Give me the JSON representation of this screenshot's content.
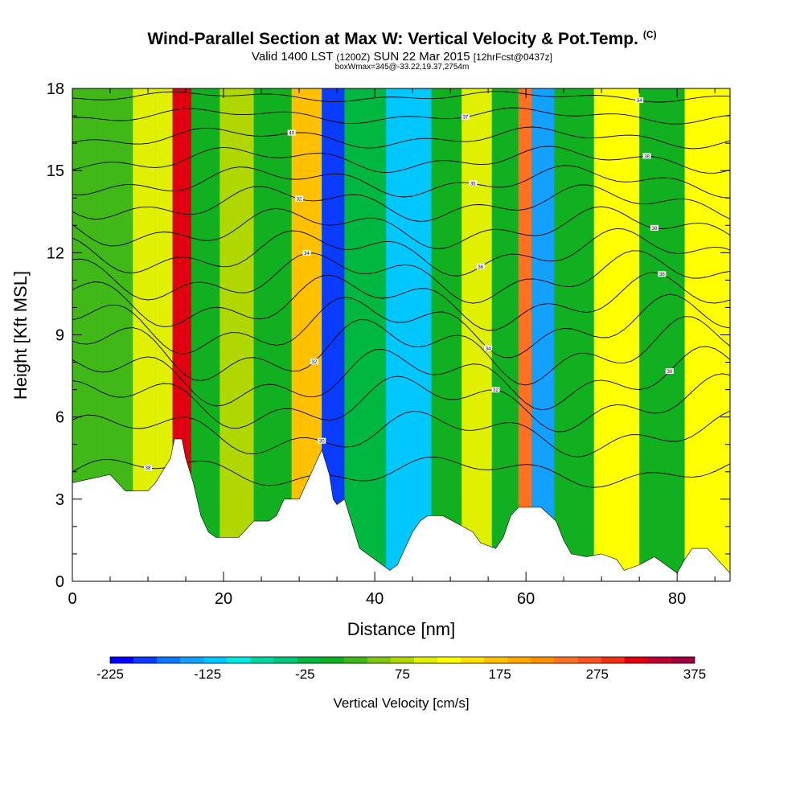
{
  "chart_data": {
    "type": "heatmap",
    "title": "Wind-Parallel Section at Max W: Vertical Velocity & Pot.Temp.",
    "copyright": "(C)",
    "subtitle_main": "Valid 1400 LST",
    "subtitle_utc": "(1200Z)",
    "subtitle_date": "SUN 22 Mar 2015",
    "subtitle_fcst": "[12hrFcst@0437z]",
    "subtitle2": "boxWmax=345@-33.22,19.37,2754m",
    "xlabel": "Distance [nm]",
    "ylabel": "Height [Kft MSL]",
    "xlim": [
      0,
      87
    ],
    "ylim": [
      0,
      18
    ],
    "xticks": [
      "0",
      "20",
      "40",
      "60",
      "80"
    ],
    "yticks": [
      "0",
      "3",
      "6",
      "9",
      "12",
      "15",
      "18"
    ],
    "colorbar": {
      "title": "Vertical Velocity [cm/s]",
      "min": -225,
      "max": 375,
      "step": 25,
      "tick_labels": [
        "-225",
        "-125",
        "-25",
        "75",
        "175",
        "275",
        "375"
      ],
      "colors": [
        "#0000ff",
        "#0a3cff",
        "#0a78ff",
        "#14a0ff",
        "#00c8ff",
        "#00e8e0",
        "#00d8a0",
        "#00c878",
        "#00b840",
        "#10b020",
        "#40b818",
        "#80c810",
        "#b0d800",
        "#e0f000",
        "#ffff00",
        "#ffe000",
        "#ffc000",
        "#ffa800",
        "#ff9000",
        "#ff7020",
        "#ff5020",
        "#f03010",
        "#e00010",
        "#c00030",
        "#a00040"
      ]
    },
    "w_columns": [
      {
        "x": 2,
        "w": 30
      },
      {
        "x": 6,
        "w": 40
      },
      {
        "x": 10,
        "w": 110
      },
      {
        "x": 12,
        "w": 115
      },
      {
        "x": 14.5,
        "w": 330
      },
      {
        "x": 17,
        "w": 10
      },
      {
        "x": 22,
        "w": 80
      },
      {
        "x": 26,
        "w": 0
      },
      {
        "x": 32,
        "w": 180
      },
      {
        "x": 34,
        "w": -190
      },
      {
        "x": 38,
        "w": -20
      },
      {
        "x": 45,
        "w": -110
      },
      {
        "x": 50,
        "w": 10
      },
      {
        "x": 53,
        "w": 120
      },
      {
        "x": 58,
        "w": 20
      },
      {
        "x": 60,
        "w": 250
      },
      {
        "x": 61.5,
        "w": -150
      },
      {
        "x": 66,
        "w": 20
      },
      {
        "x": 72,
        "w": 130
      },
      {
        "x": 78,
        "w": 10
      },
      {
        "x": 84,
        "w": 140
      }
    ],
    "terrain": [
      [
        0,
        3.6
      ],
      [
        5,
        3.9
      ],
      [
        6,
        3.6
      ],
      [
        7,
        3.3
      ],
      [
        10,
        3.3
      ],
      [
        11,
        3.6
      ],
      [
        13,
        4.5
      ],
      [
        13.5,
        5.2
      ],
      [
        14.5,
        5.2
      ],
      [
        15,
        4.5
      ],
      [
        16,
        3.6
      ],
      [
        16.5,
        3.0
      ],
      [
        17,
        2.4
      ],
      [
        18,
        1.8
      ],
      [
        19,
        1.6
      ],
      [
        22,
        1.6
      ],
      [
        24,
        2.2
      ],
      [
        26,
        2.2
      ],
      [
        27,
        2.4
      ],
      [
        28,
        3.0
      ],
      [
        30,
        3.0
      ],
      [
        31,
        3.6
      ],
      [
        32,
        4.2
      ],
      [
        33,
        4.8
      ],
      [
        34,
        3.9
      ],
      [
        34.5,
        3.0
      ],
      [
        35,
        2.8
      ],
      [
        36,
        3.0
      ],
      [
        37,
        2.1
      ],
      [
        38,
        1.2
      ],
      [
        39,
        1.0
      ],
      [
        41,
        0.6
      ],
      [
        42,
        0.4
      ],
      [
        43,
        0.6
      ],
      [
        44,
        1.2
      ],
      [
        45,
        1.8
      ],
      [
        46,
        2.2
      ],
      [
        47,
        2.4
      ],
      [
        49,
        2.4
      ],
      [
        51,
        2.1
      ],
      [
        53,
        1.8
      ],
      [
        54,
        1.4
      ],
      [
        56,
        1.2
      ],
      [
        57,
        1.6
      ],
      [
        58,
        2.4
      ],
      [
        59,
        2.7
      ],
      [
        62,
        2.7
      ],
      [
        64,
        2.2
      ],
      [
        65,
        1.5
      ],
      [
        66,
        1.0
      ],
      [
        68,
        0.9
      ],
      [
        70,
        1.0
      ],
      [
        72,
        0.8
      ],
      [
        73,
        0.4
      ],
      [
        75,
        0.6
      ],
      [
        77,
        0.9
      ],
      [
        79,
        0.5
      ],
      [
        80,
        0.3
      ],
      [
        81,
        0.8
      ],
      [
        82,
        1.2
      ],
      [
        83,
        1.2
      ],
      [
        84,
        1.2
      ],
      [
        86,
        0.6
      ],
      [
        87,
        0.3
      ]
    ],
    "theta_contours": [
      {
        "base": 4.0,
        "amp": 0.6,
        "label": "38"
      },
      {
        "base": 5.4,
        "amp": 0.9,
        "label": "30"
      },
      {
        "base": 6.5,
        "amp": 1.1,
        "label": "32"
      },
      {
        "base": 7.4,
        "amp": 1.2,
        "label": "30"
      },
      {
        "base": 8.4,
        "amp": 1.3,
        "label": "32"
      },
      {
        "base": 9.3,
        "amp": 1.2,
        "label": "34"
      },
      {
        "base": 10.2,
        "amp": 1.1,
        "label": "36"
      },
      {
        "base": 11.1,
        "amp": 1.0,
        "label": "34"
      },
      {
        "base": 12.0,
        "amp": 0.9,
        "label": "36"
      },
      {
        "base": 12.9,
        "amp": 0.8,
        "label": "38"
      },
      {
        "base": 13.8,
        "amp": 0.7,
        "label": "32"
      },
      {
        "base": 14.6,
        "amp": 0.6,
        "label": "35"
      },
      {
        "base": 15.4,
        "amp": 0.5,
        "label": "38"
      },
      {
        "base": 16.2,
        "amp": 0.4,
        "label": "40"
      },
      {
        "base": 17.0,
        "amp": 0.3,
        "label": "37"
      },
      {
        "base": 17.7,
        "amp": 0.2,
        "label": "34"
      }
    ]
  }
}
